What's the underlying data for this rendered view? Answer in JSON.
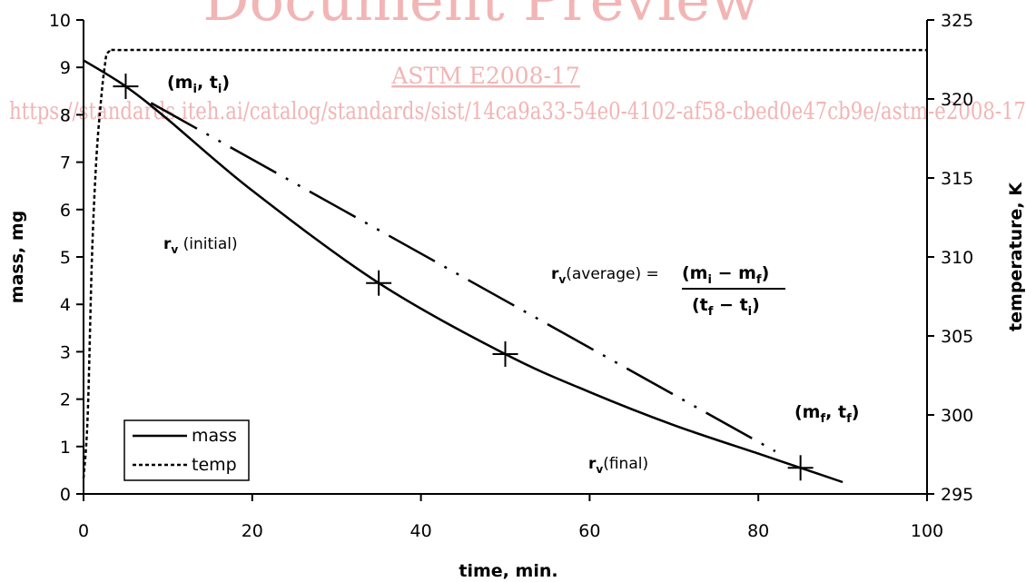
{
  "watermark": {
    "title": "Document Preview",
    "code": "ASTM E2008-17",
    "url": "https://standards.iteh.ai/catalog/standards/sist/14ca9a33-54e0-4102-af58-cbed0e47cb9e/astm-e2008-17"
  },
  "chart_data": {
    "type": "line",
    "xlabel": "time, min.",
    "ylabel": "mass, mg",
    "y2label": "temperature, K",
    "xlim": [
      0,
      100
    ],
    "ylim": [
      0,
      10
    ],
    "y2lim": [
      295,
      325
    ],
    "x_ticks": [
      "0",
      "20",
      "40",
      "60",
      "80",
      "100"
    ],
    "y_ticks": [
      "0",
      "1",
      "2",
      "3",
      "4",
      "5",
      "6",
      "7",
      "8",
      "9",
      "10"
    ],
    "y2_ticks": [
      "295",
      "300",
      "305",
      "310",
      "315",
      "320",
      "325"
    ],
    "grid": false,
    "legend": {
      "placement": "bottom-left",
      "entries": [
        {
          "label": "mass",
          "style": "solid"
        },
        {
          "label": "temp",
          "style": "dotted"
        }
      ]
    },
    "series": [
      {
        "name": "mass",
        "axis": "left",
        "style": "solid",
        "x": [
          0,
          5,
          10,
          20,
          35,
          50,
          60,
          70,
          80,
          85,
          90
        ],
        "y": [
          9.15,
          8.6,
          7.9,
          6.4,
          4.45,
          2.95,
          2.15,
          1.45,
          0.85,
          0.55,
          0.25
        ]
      },
      {
        "name": "temp",
        "axis": "right",
        "style": "dotted",
        "x": [
          0,
          0.5,
          1.0,
          1.5,
          2.0,
          2.5,
          3.0,
          5.0,
          20,
          40,
          60,
          80,
          100
        ],
        "y": [
          296,
          300,
          310,
          316,
          319.5,
          322,
          323,
          323.1,
          323.1,
          323.1,
          323.1,
          323.1,
          323.1
        ]
      },
      {
        "name": "",
        "axis": "left",
        "style": "dash-dot-dot",
        "x": [
          8,
          82
        ],
        "y": [
          8.25,
          0.9
        ]
      }
    ],
    "markers": [
      {
        "x": 5,
        "y": 8.6
      },
      {
        "x": 35,
        "y": 4.45
      },
      {
        "x": 50,
        "y": 2.95
      },
      {
        "x": 85,
        "y": 0.55
      }
    ],
    "annotations": {
      "mi_ti": {
        "open": "(m",
        "sub1": "i",
        "mid": ", t",
        "sub2": "i",
        "close": ")"
      },
      "mf_tf": {
        "open": "(m",
        "sub1": "f",
        "mid": ", t",
        "sub2": "f",
        "close": ")"
      },
      "rv_initial": {
        "r": "r",
        "sub": "v",
        "text": " (initial)"
      },
      "rv_final": {
        "r": "r",
        "sub": "v",
        "text": "(final)"
      },
      "rv_average": {
        "r": "r",
        "sub": "v",
        "text": "(average) =",
        "numerator": {
          "a": "(m",
          "a_sub": "i",
          "op": " − m",
          "b_sub": "f",
          "close": ")"
        },
        "denominator": {
          "a": "(t",
          "a_sub": "f",
          "op": " − t",
          "b_sub": "i",
          "close": ")"
        }
      }
    }
  }
}
